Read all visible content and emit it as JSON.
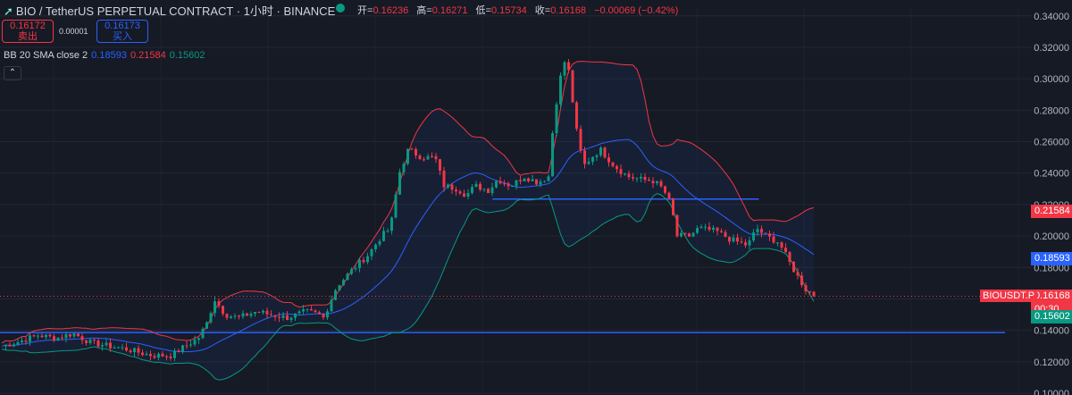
{
  "header": {
    "symbol": "BIO / TetherUS PERPETUAL CONTRACT · 1小时 · BINANCE",
    "ohlc": {
      "open_label": "开=",
      "open": "0.16236",
      "high_label": "高=",
      "high": "0.16271",
      "low_label": "低=",
      "low": "0.15734",
      "close_label": "收=",
      "close": "0.16168",
      "change": "−0.00069 (−0.42%)"
    },
    "status_color": "#089981"
  },
  "trade": {
    "sell_price": "0.16172",
    "sell_label": "卖出",
    "spread": "0.00001",
    "buy_price": "0.16173",
    "buy_label": "买入"
  },
  "indicator": {
    "label": "BB 20 SMA close 2",
    "basis": "0.18593",
    "upper": "0.21584",
    "lower": "0.15602"
  },
  "price_tags": {
    "upper": "0.21584",
    "upper_color": "#f23645",
    "basis": "0.18593",
    "basis_color": "#2962ff",
    "last": "0.16168",
    "countdown": "00:30",
    "last_color": "#f23645",
    "lower": "0.15602",
    "lower_color": "#089981",
    "symbol_tag": "BIOUSDT.P"
  },
  "chart_data": {
    "type": "candlestick",
    "y_ticks": [
      "0.10000",
      "0.12000",
      "0.14000",
      "0.16000",
      "0.18000",
      "0.20000",
      "0.22000",
      "0.24000",
      "0.26000",
      "0.28000",
      "0.30000",
      "0.32000",
      "0.34000"
    ],
    "ylim": [
      0.1,
      0.345
    ],
    "colors": {
      "up": "#089981",
      "down": "#f23645",
      "basis": "#2962ff",
      "upper": "#f23645",
      "lower": "#089981"
    },
    "hlines": [
      {
        "y": 0.1386,
        "x_from": 0,
        "x_to": 1.0
      },
      {
        "y": 0.2235,
        "x_from": 0.49,
        "x_to": 0.755
      }
    ],
    "keypoints": [
      [
        0,
        0.13
      ],
      [
        20,
        0.133
      ],
      [
        40,
        0.137
      ],
      [
        60,
        0.135
      ],
      [
        80,
        0.138
      ],
      [
        100,
        0.132
      ],
      [
        120,
        0.13
      ],
      [
        140,
        0.128
      ],
      [
        160,
        0.125
      ],
      [
        170,
        0.124
      ],
      [
        190,
        0.124
      ],
      [
        200,
        0.128
      ],
      [
        220,
        0.135
      ],
      [
        230,
        0.145
      ],
      [
        238,
        0.16
      ],
      [
        250,
        0.15
      ],
      [
        265,
        0.148
      ],
      [
        285,
        0.152
      ],
      [
        300,
        0.15
      ],
      [
        320,
        0.148
      ],
      [
        340,
        0.152
      ],
      [
        355,
        0.15
      ],
      [
        360,
        0.148
      ],
      [
        375,
        0.168
      ],
      [
        395,
        0.18
      ],
      [
        410,
        0.188
      ],
      [
        425,
        0.2
      ],
      [
        435,
        0.205
      ],
      [
        445,
        0.24
      ],
      [
        455,
        0.255
      ],
      [
        470,
        0.25
      ],
      [
        485,
        0.25
      ],
      [
        495,
        0.232
      ],
      [
        510,
        0.23
      ],
      [
        520,
        0.226
      ],
      [
        530,
        0.232
      ],
      [
        545,
        0.229
      ],
      [
        555,
        0.236
      ],
      [
        570,
        0.232
      ],
      [
        585,
        0.238
      ],
      [
        600,
        0.234
      ],
      [
        612,
        0.238
      ],
      [
        618,
        0.275
      ],
      [
        625,
        0.3
      ],
      [
        632,
        0.315
      ],
      [
        638,
        0.29
      ],
      [
        645,
        0.26
      ],
      [
        652,
        0.245
      ],
      [
        660,
        0.25
      ],
      [
        670,
        0.255
      ],
      [
        685,
        0.245
      ],
      [
        700,
        0.238
      ],
      [
        715,
        0.236
      ],
      [
        730,
        0.235
      ],
      [
        740,
        0.23
      ],
      [
        745,
        0.225
      ],
      [
        750,
        0.218
      ],
      [
        755,
        0.2
      ],
      [
        770,
        0.2
      ],
      [
        780,
        0.205
      ],
      [
        800,
        0.203
      ],
      [
        815,
        0.198
      ],
      [
        825,
        0.196
      ],
      [
        835,
        0.194
      ],
      [
        845,
        0.205
      ],
      [
        855,
        0.2
      ],
      [
        870,
        0.196
      ],
      [
        880,
        0.185
      ],
      [
        890,
        0.175
      ],
      [
        900,
        0.166
      ],
      [
        912,
        0.1617
      ]
    ]
  }
}
